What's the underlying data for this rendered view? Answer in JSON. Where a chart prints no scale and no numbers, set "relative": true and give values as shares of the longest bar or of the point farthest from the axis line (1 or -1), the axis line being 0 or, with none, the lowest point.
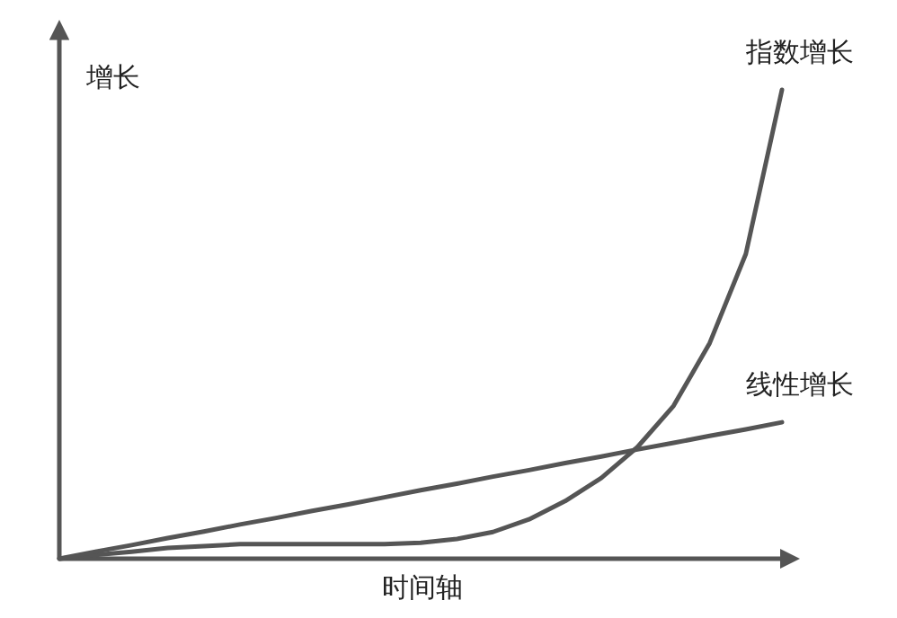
{
  "chart_data": {
    "type": "line",
    "relative": true,
    "xlabel": "时间轴",
    "ylabel": "增长",
    "categories": [
      null,
      null,
      null,
      null,
      null,
      null,
      null,
      null,
      null,
      null,
      null,
      null,
      null,
      null,
      null,
      null,
      null,
      null,
      null,
      null,
      null
    ],
    "series": [
      {
        "name": "指数增长",
        "color": "#555555",
        "values": [
          0,
          0.008,
          0.015,
          0.023,
          0.027,
          0.031,
          0.031,
          0.031,
          0.031,
          0.031,
          0.034,
          0.042,
          0.057,
          0.084,
          0.123,
          0.172,
          0.238,
          0.326,
          0.46,
          0.65,
          1
        ]
      },
      {
        "name": "线性增长",
        "color": "#555555",
        "values": [
          0,
          0.015,
          0.029,
          0.044,
          0.058,
          0.073,
          0.087,
          0.102,
          0.116,
          0.131,
          0.146,
          0.16,
          0.175,
          0.189,
          0.204,
          0.218,
          0.233,
          0.247,
          0.262,
          0.276,
          0.291
        ]
      }
    ]
  }
}
